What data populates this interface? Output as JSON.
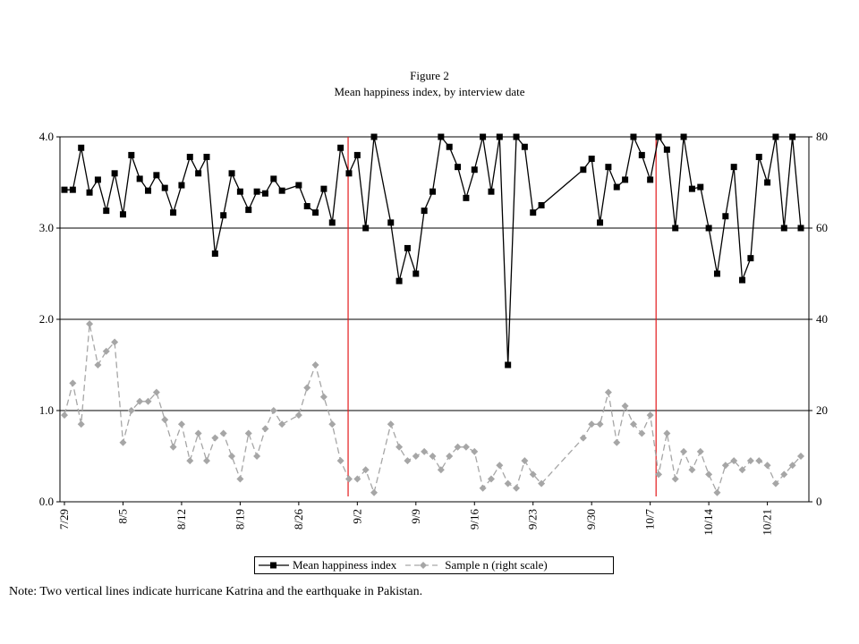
{
  "figure": {
    "label": "Figure 2",
    "title": "Mean happiness index, by interview date"
  },
  "note": "Note:  Two vertical lines indicate hurricane Katrina and the earthquake in Pakistan.",
  "colors": {
    "happiness": "#000000",
    "sample": "#a6a6a6",
    "event_line": "#e31a1c",
    "grid": "#000000"
  },
  "chart_data": {
    "type": "line",
    "x_tick_labels": [
      "7/29",
      "8/5",
      "8/12",
      "8/19",
      "8/26",
      "9/2",
      "9/9",
      "9/16",
      "9/23",
      "9/30",
      "10/7",
      "10/14",
      "10/21"
    ],
    "x_tick_days": [
      0,
      7,
      14,
      21,
      28,
      35,
      42,
      49,
      56,
      63,
      70,
      77,
      84
    ],
    "event_lines_days": [
      33.9,
      70.7
    ],
    "y_left": {
      "lim": [
        0,
        4
      ],
      "ticks": [
        "0.0",
        "1.0",
        "2.0",
        "3.0",
        "4.0"
      ],
      "grid": true
    },
    "y_right": {
      "lim": [
        0,
        80
      ],
      "ticks": [
        "0",
        "20",
        "40",
        "60",
        "80"
      ]
    },
    "legend": {
      "placement": "bottom"
    },
    "series": [
      {
        "name": "Mean happiness index",
        "axis": "left",
        "marker": "square",
        "line": "solid",
        "points": [
          [
            0,
            3.42
          ],
          [
            1,
            3.42
          ],
          [
            2,
            3.88
          ],
          [
            3,
            3.39
          ],
          [
            4,
            3.53
          ],
          [
            5,
            3.19
          ],
          [
            6,
            3.6
          ],
          [
            7,
            3.15
          ],
          [
            8,
            3.8
          ],
          [
            9,
            3.54
          ],
          [
            10,
            3.41
          ],
          [
            11,
            3.58
          ],
          [
            12,
            3.44
          ],
          [
            13,
            3.17
          ],
          [
            14,
            3.47
          ],
          [
            15,
            3.78
          ],
          [
            16,
            3.6
          ],
          [
            17,
            3.78
          ],
          [
            18,
            2.72
          ],
          [
            19,
            3.14
          ],
          [
            20,
            3.6
          ],
          [
            21,
            3.4
          ],
          [
            22,
            3.2
          ],
          [
            23,
            3.4
          ],
          [
            24,
            3.38
          ],
          [
            25,
            3.54
          ],
          [
            26,
            3.41
          ],
          [
            28,
            3.47
          ],
          [
            29,
            3.24
          ],
          [
            30,
            3.17
          ],
          [
            31,
            3.43
          ],
          [
            32,
            3.06
          ],
          [
            33,
            3.88
          ],
          [
            34,
            3.6
          ],
          [
            35,
            3.8
          ],
          [
            36,
            3.0
          ],
          [
            37,
            4.0
          ],
          [
            39,
            3.06
          ],
          [
            40,
            2.42
          ],
          [
            41,
            2.78
          ],
          [
            42,
            2.5
          ],
          [
            43,
            3.19
          ],
          [
            44,
            3.4
          ],
          [
            45,
            4.0
          ],
          [
            46,
            3.89
          ],
          [
            47,
            3.67
          ],
          [
            48,
            3.33
          ],
          [
            49,
            3.64
          ],
          [
            50,
            4.0
          ],
          [
            51,
            3.4
          ],
          [
            52,
            4.0
          ],
          [
            53,
            1.5
          ],
          [
            54,
            4.0
          ],
          [
            55,
            3.89
          ],
          [
            56,
            3.17
          ],
          [
            57,
            3.25
          ],
          [
            62,
            3.64
          ],
          [
            63,
            3.76
          ],
          [
            64,
            3.06
          ],
          [
            65,
            3.67
          ],
          [
            66,
            3.45
          ],
          [
            67,
            3.53
          ],
          [
            68,
            4.0
          ],
          [
            69,
            3.8
          ],
          [
            70,
            3.53
          ],
          [
            71,
            4.0
          ],
          [
            72,
            3.86
          ],
          [
            73,
            3.0
          ],
          [
            74,
            4.0
          ],
          [
            75,
            3.43
          ],
          [
            76,
            3.45
          ],
          [
            77,
            3.0
          ],
          [
            78,
            2.5
          ],
          [
            79,
            3.13
          ],
          [
            80,
            3.67
          ],
          [
            81,
            2.43
          ],
          [
            82,
            2.67
          ],
          [
            83,
            3.78
          ],
          [
            84,
            3.5
          ],
          [
            85,
            4.0
          ],
          [
            86,
            3.0
          ],
          [
            87,
            4.0
          ],
          [
            88,
            3.0
          ]
        ]
      },
      {
        "name": "Sample n (right scale)",
        "axis": "right",
        "marker": "diamond",
        "line": "dashed",
        "points": [
          [
            0,
            19
          ],
          [
            1,
            26
          ],
          [
            2,
            17
          ],
          [
            3,
            39
          ],
          [
            4,
            30
          ],
          [
            5,
            33
          ],
          [
            6,
            35
          ],
          [
            7,
            13
          ],
          [
            8,
            20
          ],
          [
            9,
            22
          ],
          [
            10,
            22
          ],
          [
            11,
            24
          ],
          [
            12,
            18
          ],
          [
            13,
            12
          ],
          [
            14,
            17
          ],
          [
            15,
            9
          ],
          [
            16,
            15
          ],
          [
            17,
            9
          ],
          [
            18,
            14
          ],
          [
            19,
            15
          ],
          [
            20,
            10
          ],
          [
            21,
            5
          ],
          [
            22,
            15
          ],
          [
            23,
            10
          ],
          [
            24,
            16
          ],
          [
            25,
            20
          ],
          [
            26,
            17
          ],
          [
            28,
            19
          ],
          [
            29,
            25
          ],
          [
            30,
            30
          ],
          [
            31,
            23
          ],
          [
            32,
            17
          ],
          [
            33,
            9
          ],
          [
            34,
            5
          ],
          [
            35,
            5
          ],
          [
            36,
            7
          ],
          [
            37,
            2
          ],
          [
            39,
            17
          ],
          [
            40,
            12
          ],
          [
            41,
            9
          ],
          [
            42,
            10
          ],
          [
            43,
            11
          ],
          [
            44,
            10
          ],
          [
            45,
            7
          ],
          [
            46,
            10
          ],
          [
            47,
            12
          ],
          [
            48,
            12
          ],
          [
            49,
            11
          ],
          [
            50,
            3
          ],
          [
            51,
            5
          ],
          [
            52,
            8
          ],
          [
            53,
            4
          ],
          [
            54,
            3
          ],
          [
            55,
            9
          ],
          [
            56,
            6
          ],
          [
            57,
            4
          ],
          [
            62,
            14
          ],
          [
            63,
            17
          ],
          [
            64,
            17
          ],
          [
            65,
            24
          ],
          [
            66,
            13
          ],
          [
            67,
            21
          ],
          [
            68,
            17
          ],
          [
            69,
            15
          ],
          [
            70,
            19
          ],
          [
            71,
            6
          ],
          [
            72,
            15
          ],
          [
            73,
            5
          ],
          [
            74,
            11
          ],
          [
            75,
            7
          ],
          [
            76,
            11
          ],
          [
            77,
            6
          ],
          [
            78,
            2
          ],
          [
            79,
            8
          ],
          [
            80,
            9
          ],
          [
            81,
            7
          ],
          [
            82,
            9
          ],
          [
            83,
            9
          ],
          [
            84,
            8
          ],
          [
            85,
            4
          ],
          [
            86,
            6
          ],
          [
            87,
            8
          ],
          [
            88,
            10
          ]
        ]
      }
    ]
  }
}
